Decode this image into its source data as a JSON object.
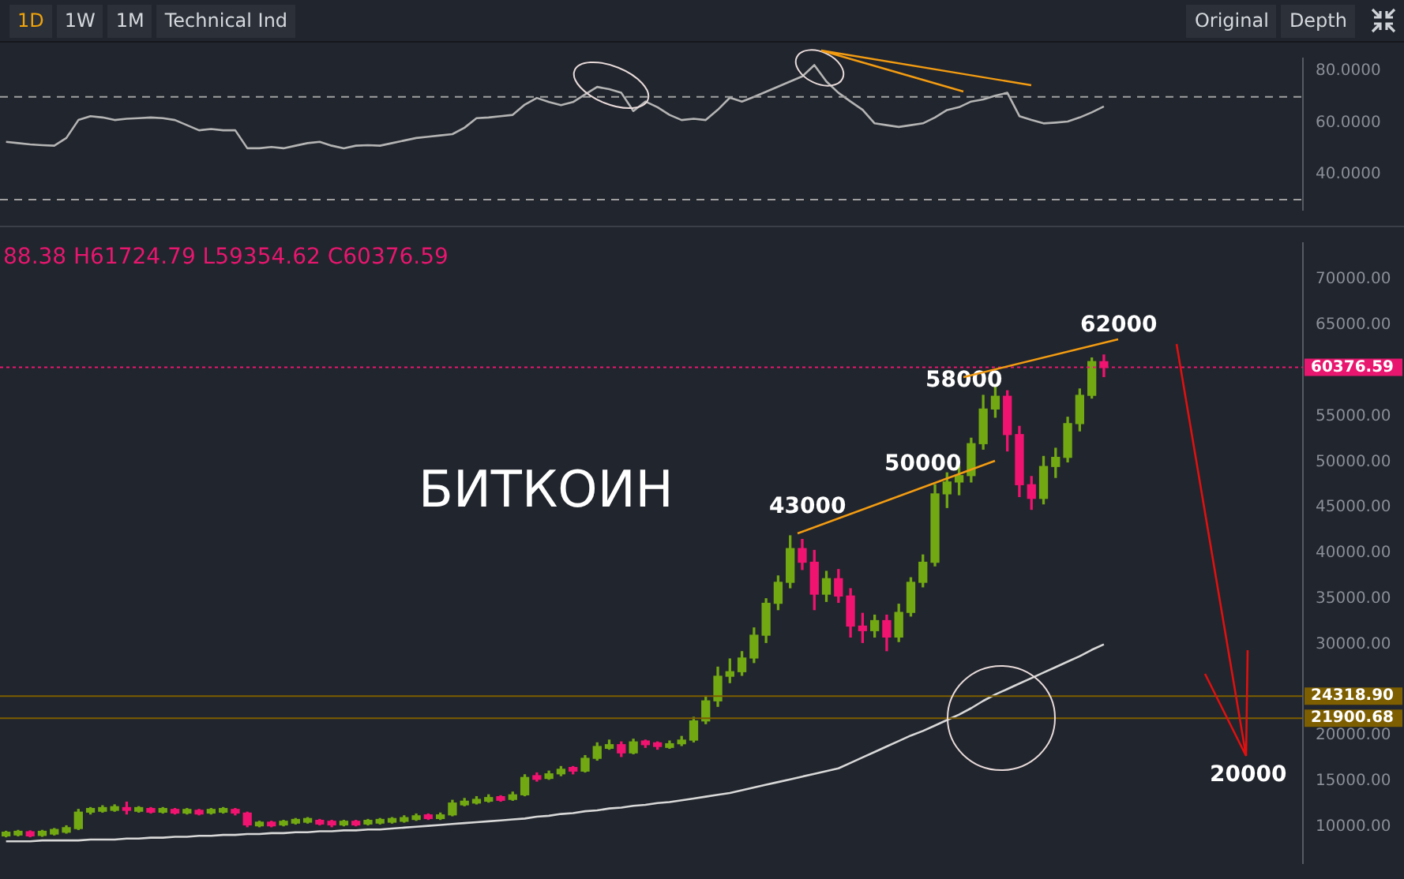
{
  "chart_data": [
    {
      "type": "line",
      "annotations": [
        "1D",
        "1W",
        "1M",
        "Technical Ind",
        "Original",
        "Depth"
      ],
      "categories": [
        null,
        null,
        null,
        null,
        null,
        null,
        null,
        null,
        null,
        null,
        null,
        null,
        null,
        null,
        null,
        null,
        null,
        null,
        null,
        null,
        null,
        null,
        null,
        null,
        null,
        null,
        null,
        null,
        null,
        null,
        null,
        null,
        null,
        null,
        null,
        null,
        null,
        null,
        null,
        null,
        null,
        null,
        null,
        null,
        null,
        null,
        null,
        null,
        null,
        null,
        null,
        null,
        null,
        null,
        null,
        null,
        null,
        null,
        null,
        null,
        null,
        null,
        null,
        null,
        null,
        null,
        null,
        null,
        null,
        null,
        null,
        null,
        null,
        null,
        null,
        null,
        null,
        null,
        null,
        null,
        null,
        null,
        null,
        null,
        null,
        null,
        null,
        null,
        null,
        null,
        null,
        null,
        null,
        null,
        null,
        null,
        null,
        null,
        null,
        null,
        null,
        null,
        null,
        null,
        null,
        null,
        null,
        null
      ],
      "series": [
        {
          "color": "#b4b4b4",
          "values": [
            52.5,
            52,
            51.5,
            51.2,
            51,
            54,
            61,
            62.5,
            62,
            61,
            61.5,
            61.7,
            62,
            61.7,
            61,
            59,
            57,
            57.5,
            57,
            57,
            50,
            50,
            50.5,
            50,
            51,
            52,
            52.5,
            51,
            50,
            51,
            51.2,
            51,
            52,
            53,
            54,
            54.5,
            55,
            55.5,
            58,
            61.7,
            62,
            62.5,
            63,
            67,
            69.6,
            68,
            66.8,
            68,
            71,
            73.9,
            73,
            71.6,
            64.5,
            68.2,
            66,
            63,
            61,
            61.5,
            61,
            65,
            69.7,
            68.2,
            70,
            72,
            74,
            76,
            78,
            82.4,
            76,
            71.6,
            68.2,
            65,
            59.7,
            59,
            58.3,
            59,
            59.7,
            62,
            64.9,
            66,
            68.2,
            69,
            70.5,
            71.6,
            62.5,
            61,
            59.7,
            60,
            60.4,
            62,
            64,
            66.3,
            null,
            null,
            null,
            null,
            null,
            null,
            null,
            null,
            null,
            null,
            null,
            null,
            null,
            null,
            null,
            null
          ]
        }
      ],
      "ylim": [
        26,
        85
      ],
      "yticks": [
        {
          "value": 40,
          "label": "40.0000"
        },
        {
          "value": 60,
          "label": "60.0000"
        },
        {
          "value": 80,
          "label": "80.0000"
        }
      ],
      "ref_lines": [
        {
          "axis": "y",
          "value": 70,
          "color": "#a0a0a0",
          "line_style": "dashed"
        },
        {
          "axis": "y",
          "value": 30,
          "color": "#a0a0a0",
          "line_style": "dashed"
        }
      ],
      "tick_labels": "y",
      "grid": false,
      "legend": false,
      "marker": "none"
    },
    {
      "type": "candlestick",
      "annotations": [
        "88.38 H61724.79 L59354.62 C60376.59",
        "БИТКОИН",
        "43000",
        "50000",
        "58000",
        "62000",
        "20000"
      ],
      "categories": [
        null,
        null,
        null,
        null,
        null,
        null,
        null,
        null,
        null,
        null,
        null,
        null,
        null,
        null,
        null,
        null,
        null,
        null,
        null,
        null,
        null,
        null,
        null,
        null,
        null,
        null,
        null,
        null,
        null,
        null,
        null,
        null,
        null,
        null,
        null,
        null,
        null,
        null,
        null,
        null,
        null,
        null,
        null,
        null,
        null,
        null,
        null,
        null,
        null,
        null,
        null,
        null,
        null,
        null,
        null,
        null,
        null,
        null,
        null,
        null,
        null,
        null,
        null,
        null,
        null,
        null,
        null,
        null,
        null,
        null,
        null,
        null,
        null,
        null,
        null,
        null,
        null,
        null,
        null,
        null,
        null,
        null,
        null,
        null,
        null,
        null,
        null,
        null,
        null,
        null,
        null,
        null,
        null,
        null,
        null,
        null,
        null,
        null,
        null,
        null,
        null,
        null,
        null,
        null,
        null,
        null,
        null,
        null
      ],
      "series": [
        {
          "type": "candlestick",
          "colors": [
            "#72a913",
            "#72a913",
            "#f0136f",
            "#72a913",
            "#72a913",
            "#72a913",
            "#72a913",
            "#72a913",
            "#72a913",
            "#72a913",
            "#f0136f",
            "#72a913",
            "#f0136f",
            "#72a913",
            "#f0136f",
            "#72a913",
            "#f0136f",
            "#72a913",
            "#72a913",
            "#f0136f",
            "#f0136f",
            "#72a913",
            "#f0136f",
            "#72a913",
            "#72a913",
            "#72a913",
            "#f0136f",
            "#f0136f",
            "#72a913",
            "#f0136f",
            "#72a913",
            "#72a913",
            "#72a913",
            "#72a913",
            "#72a913",
            "#f0136f",
            "#72a913",
            "#72a913",
            "#72a913",
            "#72a913",
            "#72a913",
            "#f0136f",
            "#72a913",
            "#72a913",
            "#f0136f",
            "#72a913",
            "#72a913",
            "#f0136f",
            "#72a913",
            "#72a913",
            "#72a913",
            "#f0136f",
            "#72a913",
            "#f0136f",
            "#f0136f",
            "#72a913",
            "#72a913",
            "#72a913",
            "#72a913",
            "#72a913",
            "#72a913",
            "#72a913",
            "#72a913",
            "#72a913",
            "#72a913",
            "#72a913",
            "#f0136f",
            "#f0136f",
            "#72a913",
            "#f0136f",
            "#f0136f",
            "#f0136f",
            "#72a913",
            "#f0136f",
            "#72a913",
            "#72a913",
            "#72a913",
            "#72a913",
            "#72a913",
            "#72a913",
            "#72a913",
            "#72a913",
            "#72a913",
            "#f0136f",
            "#f0136f",
            "#f0136f",
            "#72a913",
            "#72a913",
            "#72a913",
            "#72a913",
            "#72a913",
            "#f0136f",
            null,
            null,
            null,
            null,
            null,
            null,
            null,
            null,
            null,
            null,
            null,
            null,
            null,
            null,
            null,
            null
          ],
          "ohlc": [
            [
              9000,
              9500,
              8900,
              9400
            ],
            [
              9100,
              9600,
              9000,
              9500
            ],
            [
              9450,
              9550,
              8900,
              9000
            ],
            [
              9050,
              9600,
              8950,
              9500
            ],
            [
              9200,
              9800,
              9100,
              9700
            ],
            [
              9400,
              10100,
              9300,
              9900
            ],
            [
              9800,
              11900,
              9700,
              11600
            ],
            [
              11600,
              12100,
              11400,
              12000
            ],
            [
              11700,
              12300,
              11600,
              12100
            ],
            [
              11800,
              12400,
              11700,
              12200
            ],
            [
              12100,
              12700,
              11400,
              11800
            ],
            [
              11700,
              12200,
              11600,
              12100
            ],
            [
              12000,
              12100,
              11500,
              11600
            ],
            [
              11600,
              12100,
              11500,
              12000
            ],
            [
              11900,
              12000,
              11400,
              11500
            ],
            [
              11500,
              12000,
              11400,
              11900
            ],
            [
              11800,
              11900,
              11300,
              11400
            ],
            [
              11500,
              12000,
              11400,
              11900
            ],
            [
              11600,
              12100,
              11500,
              12000
            ],
            [
              11900,
              12000,
              11300,
              11500
            ],
            [
              11500,
              11600,
              10000,
              10200
            ],
            [
              10100,
              10600,
              10000,
              10500
            ],
            [
              10500,
              10600,
              10000,
              10100
            ],
            [
              10200,
              10700,
              10100,
              10600
            ],
            [
              10400,
              10900,
              10300,
              10800
            ],
            [
              10500,
              11000,
              10400,
              10900
            ],
            [
              10700,
              10800,
              10200,
              10300
            ],
            [
              10600,
              10700,
              10000,
              10200
            ],
            [
              10200,
              10700,
              10100,
              10600
            ],
            [
              10600,
              10700,
              10100,
              10200
            ],
            [
              10300,
              10800,
              10200,
              10700
            ],
            [
              10400,
              10900,
              10300,
              10800
            ],
            [
              10500,
              11000,
              10400,
              10900
            ],
            [
              10600,
              11200,
              10500,
              11000
            ],
            [
              10800,
              11400,
              10700,
              11200
            ],
            [
              11300,
              11400,
              10800,
              10900
            ],
            [
              10900,
              11500,
              10800,
              11300
            ],
            [
              11300,
              12900,
              11200,
              12600
            ],
            [
              12400,
              13100,
              12300,
              12800
            ],
            [
              12600,
              13300,
              12500,
              13000
            ],
            [
              12800,
              13500,
              12700,
              13200
            ],
            [
              13300,
              13400,
              12800,
              12900
            ],
            [
              13000,
              13800,
              12900,
              13500
            ],
            [
              13500,
              15700,
              13400,
              15400
            ],
            [
              15600,
              15900,
              15000,
              15200
            ],
            [
              15300,
              16100,
              15200,
              15800
            ],
            [
              15800,
              16600,
              15600,
              16300
            ],
            [
              16500,
              16600,
              15800,
              16100
            ],
            [
              16100,
              17800,
              16000,
              17500
            ],
            [
              17500,
              19200,
              17300,
              18800
            ],
            [
              18600,
              19500,
              18500,
              19000
            ],
            [
              19000,
              19300,
              17700,
              18100
            ],
            [
              18100,
              19600,
              18000,
              19300
            ],
            [
              19400,
              19500,
              18700,
              19000
            ],
            [
              19200,
              19300,
              18500,
              18800
            ],
            [
              18700,
              19400,
              18600,
              19100
            ],
            [
              19100,
              19900,
              18900,
              19500
            ],
            [
              19500,
              22000,
              19300,
              21600
            ],
            [
              21600,
              24300,
              21300,
              23800
            ],
            [
              23800,
              27500,
              23200,
              26500
            ],
            [
              26500,
              28400,
              25800,
              27000
            ],
            [
              27000,
              29200,
              26600,
              28500
            ],
            [
              28500,
              31800,
              28000,
              31000
            ],
            [
              31000,
              35000,
              30200,
              34500
            ],
            [
              34500,
              37500,
              33800,
              36800
            ],
            [
              36800,
              41900,
              36200,
              40500
            ],
            [
              40500,
              41500,
              38200,
              39000
            ],
            [
              39000,
              40300,
              33800,
              35500
            ],
            [
              35500,
              38000,
              34700,
              37200
            ],
            [
              37200,
              38200,
              34600,
              35300
            ],
            [
              35300,
              36100,
              30800,
              32000
            ],
            [
              32000,
              33400,
              30200,
              31500
            ],
            [
              31500,
              33200,
              30800,
              32600
            ],
            [
              32600,
              33200,
              29300,
              30800
            ],
            [
              30800,
              34400,
              30300,
              33500
            ],
            [
              33500,
              37300,
              33100,
              36800
            ],
            [
              36800,
              39800,
              36300,
              39000
            ],
            [
              39000,
              47500,
              38600,
              46500
            ],
            [
              46500,
              48800,
              45000,
              47800
            ],
            [
              47800,
              49500,
              46400,
              48500
            ],
            [
              48500,
              52600,
              47800,
              52000
            ],
            [
              52000,
              57300,
              51400,
              55800
            ],
            [
              55800,
              58300,
              54900,
              57200
            ],
            [
              57200,
              57800,
              51200,
              53000
            ],
            [
              53000,
              53900,
              46200,
              47500
            ],
            [
              47500,
              48400,
              44800,
              46000
            ],
            [
              46000,
              50600,
              45400,
              49500
            ],
            [
              49500,
              51500,
              48300,
              50500
            ],
            [
              50500,
              54900,
              50000,
              54200
            ],
            [
              54200,
              58000,
              53400,
              57300
            ],
            [
              57300,
              61400,
              57000,
              61000
            ],
            [
              60988.38,
              61724.79,
              59354.62,
              60376.59
            ],
            null,
            null,
            null,
            null,
            null,
            null,
            null,
            null,
            null,
            null,
            null,
            null,
            null,
            null,
            null,
            null
          ]
        },
        {
          "type": "line",
          "color": "#d8d8d8",
          "values": [
            8400,
            8400,
            8400,
            8500,
            8500,
            8500,
            8500,
            8600,
            8600,
            8600,
            8700,
            8700,
            8800,
            8800,
            8900,
            8900,
            9000,
            9000,
            9100,
            9100,
            9200,
            9200,
            9300,
            9300,
            9400,
            9400,
            9500,
            9500,
            9600,
            9600,
            9700,
            9700,
            9800,
            9900,
            10000,
            10100,
            10200,
            10300,
            10400,
            10500,
            10600,
            10700,
            10800,
            10900,
            11100,
            11200,
            11400,
            11500,
            11700,
            11800,
            12000,
            12100,
            12300,
            12400,
            12600,
            12700,
            12900,
            13100,
            13300,
            13500,
            13700,
            14000,
            14300,
            14600,
            14900,
            15200,
            15500,
            15800,
            16100,
            16400,
            17000,
            17600,
            18200,
            18800,
            19400,
            20000,
            20500,
            21100,
            21700,
            22300,
            23000,
            23800,
            24500,
            25100,
            25700,
            26300,
            26900,
            27500,
            28100,
            28700,
            29400,
            30000,
            null,
            null,
            null,
            null,
            null,
            null,
            null,
            null,
            null,
            null,
            null,
            null,
            null,
            null,
            null,
            null
          ]
        }
      ],
      "ylim": [
        6000,
        74000
      ],
      "yticks": [
        {
          "value": 10000,
          "label": "10000.00"
        },
        {
          "value": 15000,
          "label": "15000.00"
        },
        {
          "value": 20000,
          "label": "20000.00"
        },
        {
          "value": 30000,
          "label": "30000.00"
        },
        {
          "value": 35000,
          "label": "35000.00"
        },
        {
          "value": 40000,
          "label": "40000.00"
        },
        {
          "value": 45000,
          "label": "45000.00"
        },
        {
          "value": 50000,
          "label": "50000.00"
        },
        {
          "value": 55000,
          "label": "55000.00"
        },
        {
          "value": 65000,
          "label": "65000.00"
        },
        {
          "value": 70000,
          "label": "70000.00"
        }
      ],
      "ref_lines": [
        {
          "axis": "y",
          "value": 60376.59,
          "label": "60376.59",
          "color": "#e8166f",
          "line_style": "dotted"
        },
        {
          "axis": "y",
          "value": 24318.9,
          "label": "24318.90",
          "color": "#7d5e00",
          "line_style": "solid"
        },
        {
          "axis": "y",
          "value": 21900.68,
          "label": "21900.68",
          "color": "#7d5e00",
          "line_style": "solid"
        }
      ],
      "tick_labels": "y",
      "grid": false,
      "legend": false
    }
  ]
}
